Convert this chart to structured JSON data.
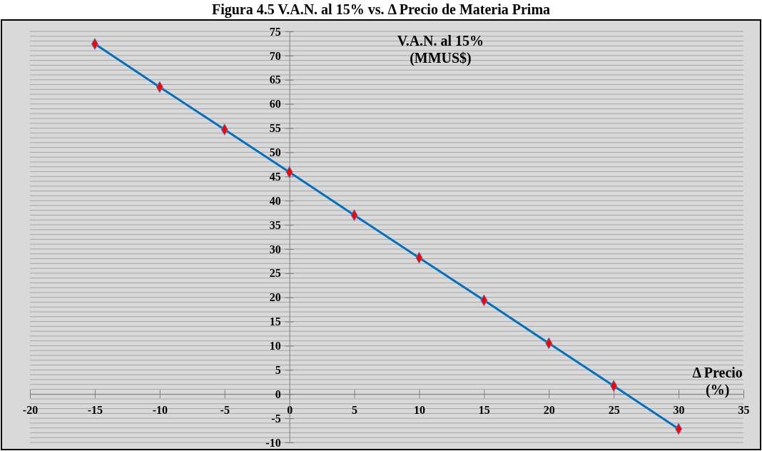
{
  "chart_data": {
    "type": "line",
    "title": "Figura 4.5 V.A.N. al 15% vs.  Δ Precio de Materia Prima",
    "xlabel": "Δ Precio\n(%)",
    "ylabel": "V.A.N. al 15%\n(MMUS$)",
    "x": [
      -15,
      -10,
      -5,
      0,
      5,
      10,
      15,
      20,
      25,
      30
    ],
    "series": [
      {
        "color": "#0070c0",
        "values": [
          72.4,
          63.5,
          54.7,
          45.9,
          37.0,
          28.2,
          19.4,
          10.5,
          1.7,
          -7.2
        ]
      }
    ],
    "xlim": [
      -20,
      35
    ],
    "xticks": [
      -20,
      -15,
      -10,
      -5,
      0,
      5,
      10,
      15,
      20,
      25,
      30,
      35
    ],
    "ylim": [
      -10,
      75
    ],
    "yticks": [
      -10,
      -5,
      0,
      5,
      10,
      15,
      20,
      25,
      30,
      35,
      40,
      45,
      50,
      55,
      60,
      65,
      70,
      75
    ],
    "grid": "y",
    "marker": "diamond",
    "line_style": "solid"
  }
}
